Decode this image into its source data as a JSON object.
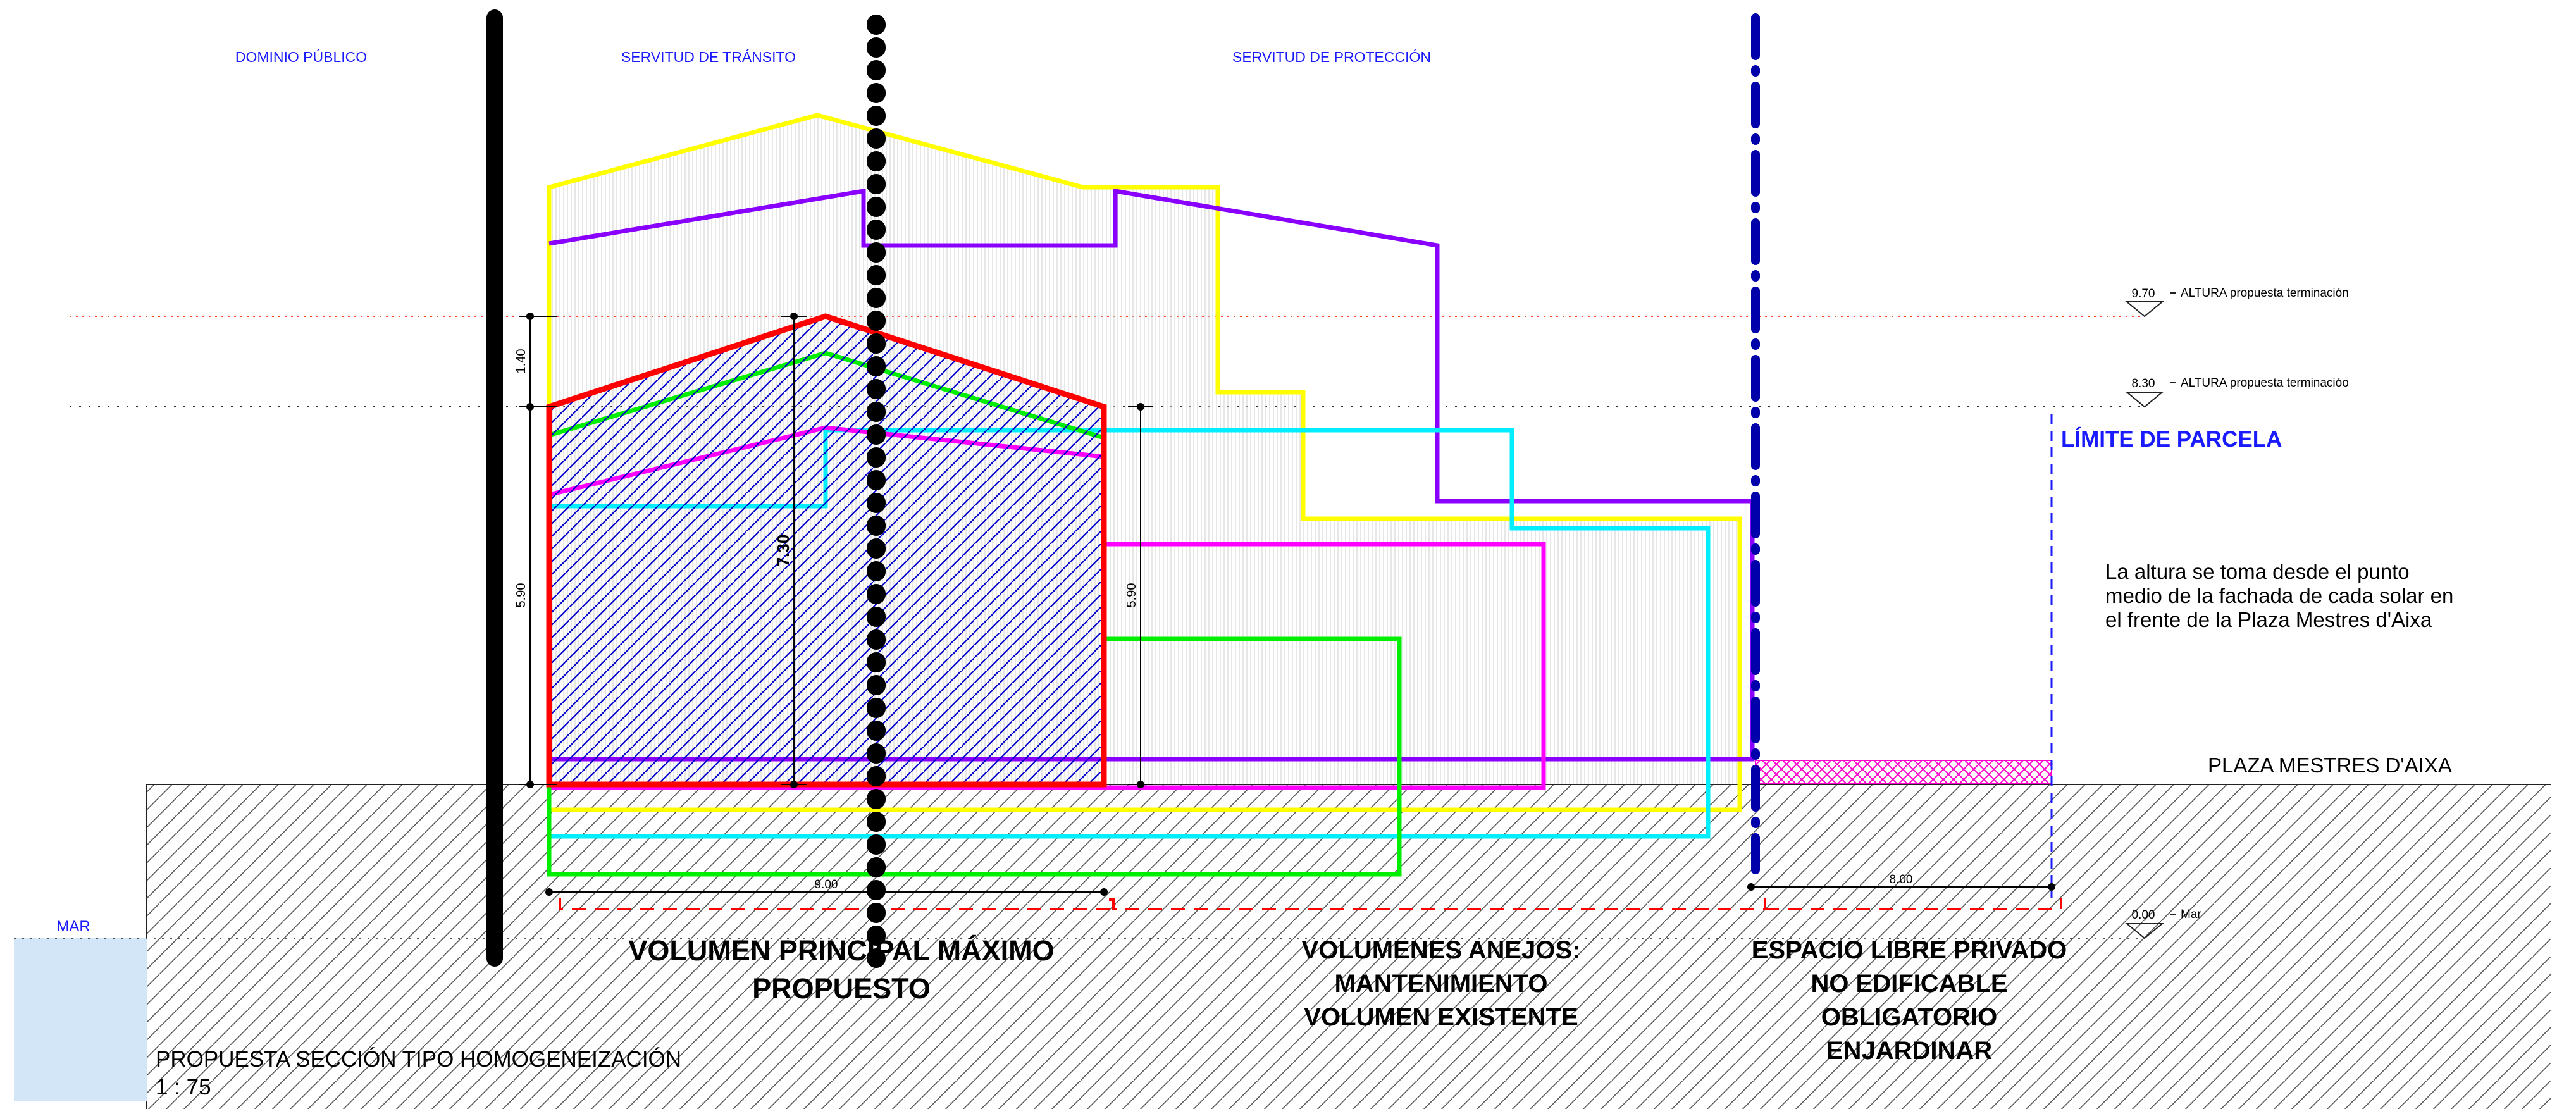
{
  "zones": {
    "dominio_publico": "DOMINIO PÚBLICO",
    "servitud_transito": "SERVITUD DE TRÁNSITO",
    "servitud_proteccion": "SERVITUD DE PROTECCIÓN"
  },
  "levels": {
    "level_970": {
      "value": "9.70",
      "label": "ALTURA propuesta terminación"
    },
    "level_830": {
      "value": "8.30",
      "label": "ALTURA propuesta terminacióo"
    },
    "level_000": {
      "value": "0.00",
      "label": "Mar"
    }
  },
  "labels": {
    "limite_parcela": "LÍMITE DE PARCELA",
    "nota_altura": [
      "La altura se toma desde el punto",
      "medio de la fachada de cada solar en",
      "el frente de la Plaza Mestres d'Aixa"
    ],
    "plaza": "PLAZA MESTRES D'AIXA",
    "mar": "MAR",
    "volumen_principal": [
      "VOLUMEN PRINCIPAL MÁXIMO",
      "PROPUESTO"
    ],
    "volumenes_anejos": [
      "VOLUMENES ANEJOS:",
      "MANTENIMIENTO",
      "VOLUMEN EXISTENTE"
    ],
    "espacio_libre": [
      "ESPACIO LIBRE PRIVADO",
      "NO EDIFICABLE",
      "OBLIGATORIO",
      "ENJARDINAR"
    ],
    "titulo": "PROPUESTA SECCIÓN TIPO HOMOGENEIZACIÓN",
    "escala": "1 : 75"
  },
  "dimensions": {
    "d_140": "1.40",
    "d_590_left": "5.90",
    "d_730": "7.30",
    "d_590_right": "5.90",
    "d_900": "9.00",
    "d_800": "8.00"
  },
  "colors": {
    "red": "#ff0000",
    "yellow": "#ffff00",
    "purple": "#8a00ff",
    "green": "#00ee00",
    "magenta": "#ff00ff",
    "cyan": "#00eeff",
    "blue_hatch": "#0000cc",
    "boundary_blue": "#0000aa",
    "sea": "#d3e6f8"
  }
}
